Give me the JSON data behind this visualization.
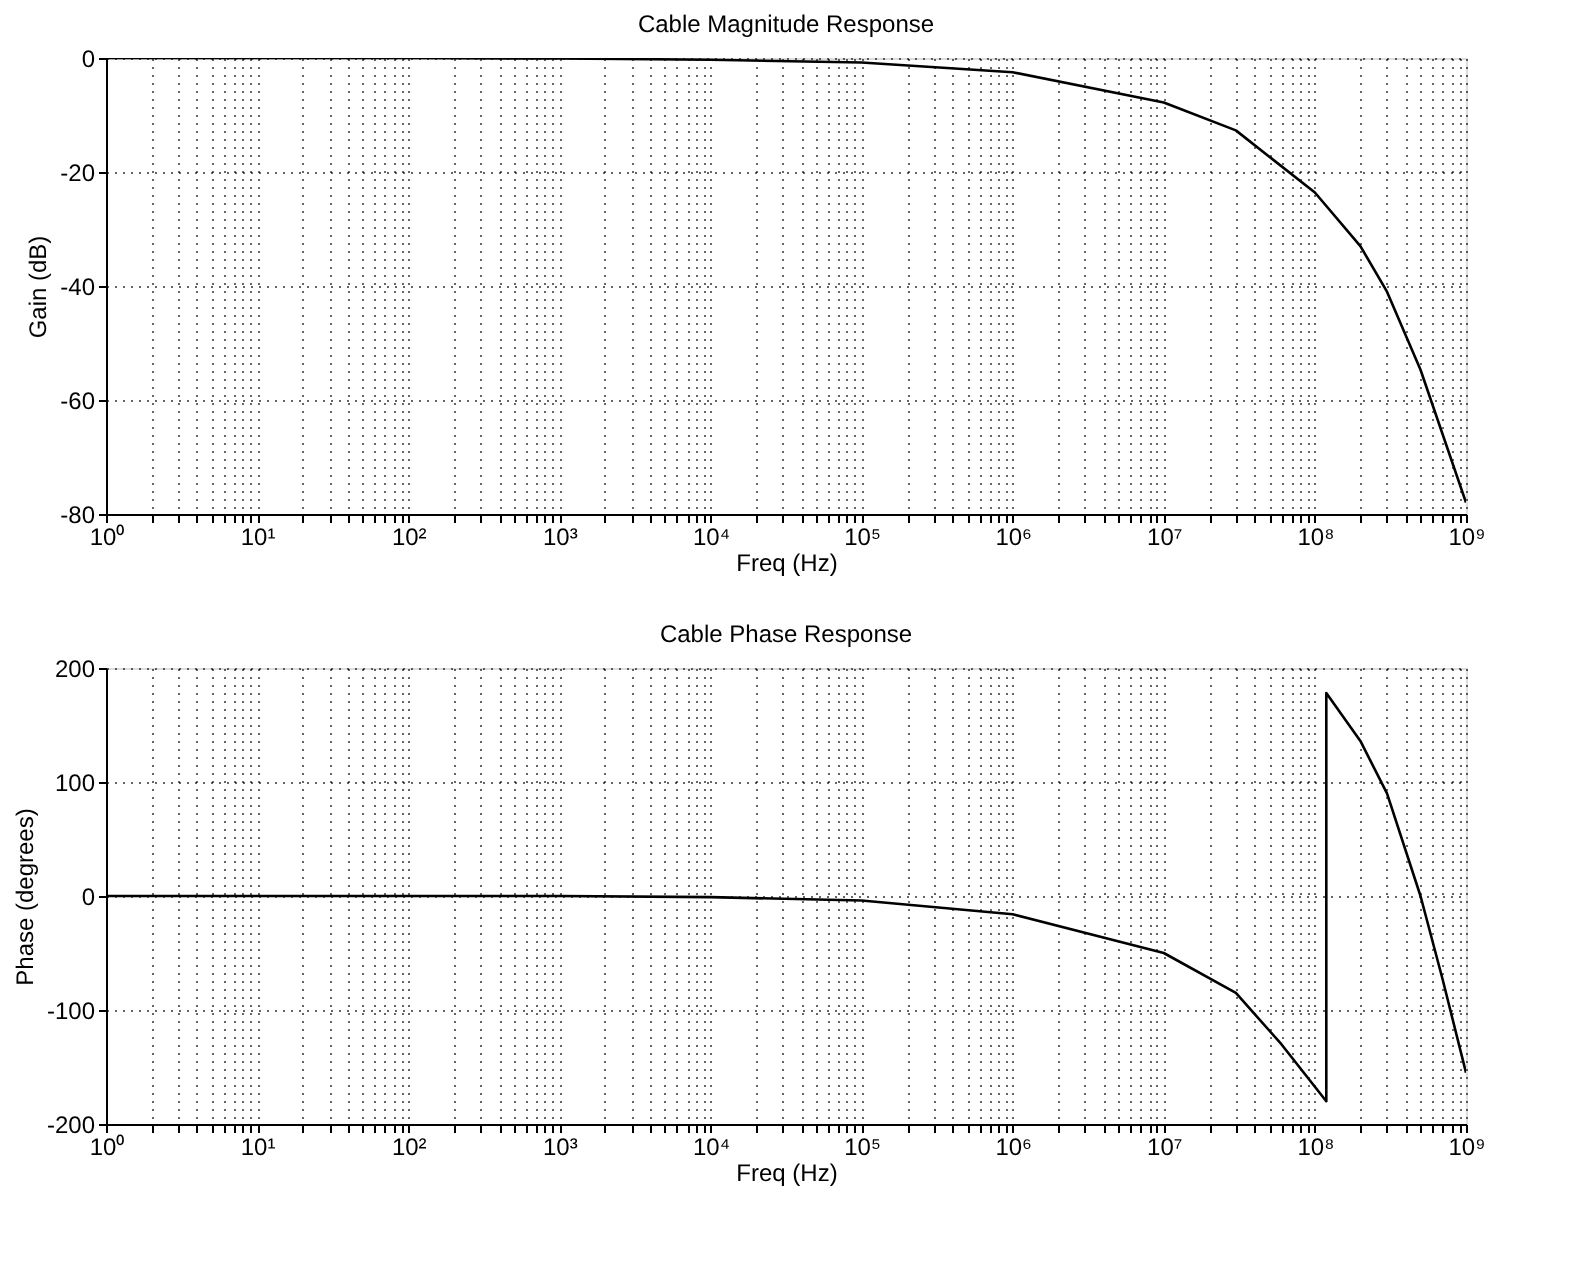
{
  "chart_data": [
    {
      "type": "line",
      "title": "Cable Magnitude Response",
      "xlabel": "Freq (Hz)",
      "ylabel": "Gain (dB)",
      "log": "x",
      "grid": true,
      "line_style": "solid",
      "marker": "none",
      "series": [
        {
          "color": "#000000",
          "x": [
            1,
            10,
            100,
            1000,
            10000,
            100000,
            1000000,
            10000000,
            30000000,
            100000000,
            200000000,
            300000000,
            500000000,
            1000000000
          ],
          "values": [
            0,
            0,
            0,
            -0.1,
            -0.3,
            -0.8,
            -2.5,
            -7.8,
            -12.7,
            -23.6,
            -33,
            -41,
            -54.7,
            -78
          ]
        }
      ],
      "xlim": [
        1,
        1000000000
      ],
      "ylim": [
        -80,
        0
      ],
      "yticks": [
        -80,
        -60,
        -40,
        -20,
        0
      ],
      "xticks": [
        {
          "value": 1,
          "label": "10⁰"
        },
        {
          "value": 10,
          "label": "10¹"
        },
        {
          "value": 100,
          "label": "10²"
        },
        {
          "value": 1000,
          "label": "10³"
        },
        {
          "value": 10000,
          "label": "10⁴"
        },
        {
          "value": 100000,
          "label": "10⁵"
        },
        {
          "value": 1000000,
          "label": "10⁶"
        },
        {
          "value": 10000000,
          "label": "10⁷"
        },
        {
          "value": 100000000,
          "label": "10⁸"
        },
        {
          "value": 1000000000,
          "label": "10⁹"
        },
        {
          "value": 2,
          "label": null
        },
        {
          "value": 3,
          "label": null
        },
        {
          "value": 4,
          "label": null
        },
        {
          "value": 5,
          "label": null
        },
        {
          "value": 6,
          "label": null
        },
        {
          "value": 7,
          "label": null
        },
        {
          "value": 8,
          "label": null
        },
        {
          "value": 9,
          "label": null
        },
        {
          "value": 20,
          "label": null
        },
        {
          "value": 30,
          "label": null
        },
        {
          "value": 40,
          "label": null
        },
        {
          "value": 50,
          "label": null
        },
        {
          "value": 60,
          "label": null
        },
        {
          "value": 70,
          "label": null
        },
        {
          "value": 80,
          "label": null
        },
        {
          "value": 90,
          "label": null
        },
        {
          "value": 200,
          "label": null
        },
        {
          "value": 300,
          "label": null
        },
        {
          "value": 400,
          "label": null
        },
        {
          "value": 500,
          "label": null
        },
        {
          "value": 600,
          "label": null
        },
        {
          "value": 700,
          "label": null
        },
        {
          "value": 800,
          "label": null
        },
        {
          "value": 900,
          "label": null
        },
        {
          "value": 2000,
          "label": null
        },
        {
          "value": 3000,
          "label": null
        },
        {
          "value": 4000,
          "label": null
        },
        {
          "value": 5000,
          "label": null
        },
        {
          "value": 6000,
          "label": null
        },
        {
          "value": 7000,
          "label": null
        },
        {
          "value": 8000,
          "label": null
        },
        {
          "value": 9000,
          "label": null
        },
        {
          "value": 20000,
          "label": null
        },
        {
          "value": 30000,
          "label": null
        },
        {
          "value": 40000,
          "label": null
        },
        {
          "value": 50000,
          "label": null
        },
        {
          "value": 60000,
          "label": null
        },
        {
          "value": 70000,
          "label": null
        },
        {
          "value": 80000,
          "label": null
        },
        {
          "value": 90000,
          "label": null
        },
        {
          "value": 200000,
          "label": null
        },
        {
          "value": 300000,
          "label": null
        },
        {
          "value": 400000,
          "label": null
        },
        {
          "value": 500000,
          "label": null
        },
        {
          "value": 600000,
          "label": null
        },
        {
          "value": 700000,
          "label": null
        },
        {
          "value": 800000,
          "label": null
        },
        {
          "value": 900000,
          "label": null
        },
        {
          "value": 2000000,
          "label": null
        },
        {
          "value": 3000000,
          "label": null
        },
        {
          "value": 4000000,
          "label": null
        },
        {
          "value": 5000000,
          "label": null
        },
        {
          "value": 6000000,
          "label": null
        },
        {
          "value": 7000000,
          "label": null
        },
        {
          "value": 8000000,
          "label": null
        },
        {
          "value": 9000000,
          "label": null
        },
        {
          "value": 20000000,
          "label": null
        },
        {
          "value": 30000000,
          "label": null
        },
        {
          "value": 40000000,
          "label": null
        },
        {
          "value": 50000000,
          "label": null
        },
        {
          "value": 60000000,
          "label": null
        },
        {
          "value": 70000000,
          "label": null
        },
        {
          "value": 80000000,
          "label": null
        },
        {
          "value": 90000000,
          "label": null
        },
        {
          "value": 200000000,
          "label": null
        },
        {
          "value": 300000000,
          "label": null
        },
        {
          "value": 400000000,
          "label": null
        },
        {
          "value": 500000000,
          "label": null
        },
        {
          "value": 600000000,
          "label": null
        },
        {
          "value": 700000000,
          "label": null
        },
        {
          "value": 800000000,
          "label": null
        },
        {
          "value": 900000000,
          "label": null
        }
      ]
    },
    {
      "type": "line",
      "title": "Cable Phase Response",
      "xlabel": "Freq (Hz)",
      "ylabel": "Phase (degrees)",
      "log": "x",
      "grid": true,
      "line_style": "solid",
      "marker": "none",
      "series": [
        {
          "color": "#000000",
          "x": [
            1,
            10,
            100,
            1000,
            10000,
            100000,
            1000000,
            10000000,
            30000000,
            60000000,
            119000000,
            119000000,
            200000000,
            300000000,
            500000000,
            700000000,
            1000000000
          ],
          "values": [
            0,
            0,
            0,
            0,
            -1,
            -4,
            -16,
            -50,
            -85,
            -130,
            -180,
            178,
            136,
            90,
            0,
            -73,
            -155
          ]
        }
      ],
      "xlim": [
        1,
        1000000000
      ],
      "ylim": [
        -200,
        200
      ],
      "yticks": [
        -200,
        -100,
        0,
        100,
        200
      ],
      "xticks": [
        {
          "value": 1,
          "label": "10⁰"
        },
        {
          "value": 10,
          "label": "10¹"
        },
        {
          "value": 100,
          "label": "10²"
        },
        {
          "value": 1000,
          "label": "10³"
        },
        {
          "value": 10000,
          "label": "10⁴"
        },
        {
          "value": 100000,
          "label": "10⁵"
        },
        {
          "value": 1000000,
          "label": "10⁶"
        },
        {
          "value": 10000000,
          "label": "10⁷"
        },
        {
          "value": 100000000,
          "label": "10⁸"
        },
        {
          "value": 1000000000,
          "label": "10⁹"
        },
        {
          "value": 2,
          "label": null
        },
        {
          "value": 3,
          "label": null
        },
        {
          "value": 4,
          "label": null
        },
        {
          "value": 5,
          "label": null
        },
        {
          "value": 6,
          "label": null
        },
        {
          "value": 7,
          "label": null
        },
        {
          "value": 8,
          "label": null
        },
        {
          "value": 9,
          "label": null
        },
        {
          "value": 20,
          "label": null
        },
        {
          "value": 30,
          "label": null
        },
        {
          "value": 40,
          "label": null
        },
        {
          "value": 50,
          "label": null
        },
        {
          "value": 60,
          "label": null
        },
        {
          "value": 70,
          "label": null
        },
        {
          "value": 80,
          "label": null
        },
        {
          "value": 90,
          "label": null
        },
        {
          "value": 200,
          "label": null
        },
        {
          "value": 300,
          "label": null
        },
        {
          "value": 400,
          "label": null
        },
        {
          "value": 500,
          "label": null
        },
        {
          "value": 600,
          "label": null
        },
        {
          "value": 700,
          "label": null
        },
        {
          "value": 800,
          "label": null
        },
        {
          "value": 900,
          "label": null
        },
        {
          "value": 2000,
          "label": null
        },
        {
          "value": 3000,
          "label": null
        },
        {
          "value": 4000,
          "label": null
        },
        {
          "value": 5000,
          "label": null
        },
        {
          "value": 6000,
          "label": null
        },
        {
          "value": 7000,
          "label": null
        },
        {
          "value": 8000,
          "label": null
        },
        {
          "value": 9000,
          "label": null
        },
        {
          "value": 20000,
          "label": null
        },
        {
          "value": 30000,
          "label": null
        },
        {
          "value": 40000,
          "label": null
        },
        {
          "value": 50000,
          "label": null
        },
        {
          "value": 60000,
          "label": null
        },
        {
          "value": 70000,
          "label": null
        },
        {
          "value": 80000,
          "label": null
        },
        {
          "value": 90000,
          "label": null
        },
        {
          "value": 200000,
          "label": null
        },
        {
          "value": 300000,
          "label": null
        },
        {
          "value": 400000,
          "label": null
        },
        {
          "value": 500000,
          "label": null
        },
        {
          "value": 600000,
          "label": null
        },
        {
          "value": 700000,
          "label": null
        },
        {
          "value": 800000,
          "label": null
        },
        {
          "value": 900000,
          "label": null
        },
        {
          "value": 2000000,
          "label": null
        },
        {
          "value": 3000000,
          "label": null
        },
        {
          "value": 4000000,
          "label": null
        },
        {
          "value": 5000000,
          "label": null
        },
        {
          "value": 6000000,
          "label": null
        },
        {
          "value": 7000000,
          "label": null
        },
        {
          "value": 8000000,
          "label": null
        },
        {
          "value": 9000000,
          "label": null
        },
        {
          "value": 20000000,
          "label": null
        },
        {
          "value": 30000000,
          "label": null
        },
        {
          "value": 40000000,
          "label": null
        },
        {
          "value": 50000000,
          "label": null
        },
        {
          "value": 60000000,
          "label": null
        },
        {
          "value": 70000000,
          "label": null
        },
        {
          "value": 80000000,
          "label": null
        },
        {
          "value": 90000000,
          "label": null
        },
        {
          "value": 200000000,
          "label": null
        },
        {
          "value": 300000000,
          "label": null
        },
        {
          "value": 400000000,
          "label": null
        },
        {
          "value": 500000000,
          "label": null
        },
        {
          "value": 600000000,
          "label": null
        },
        {
          "value": 700000000,
          "label": null
        },
        {
          "value": 800000000,
          "label": null
        },
        {
          "value": 900000000,
          "label": null
        }
      ]
    }
  ]
}
